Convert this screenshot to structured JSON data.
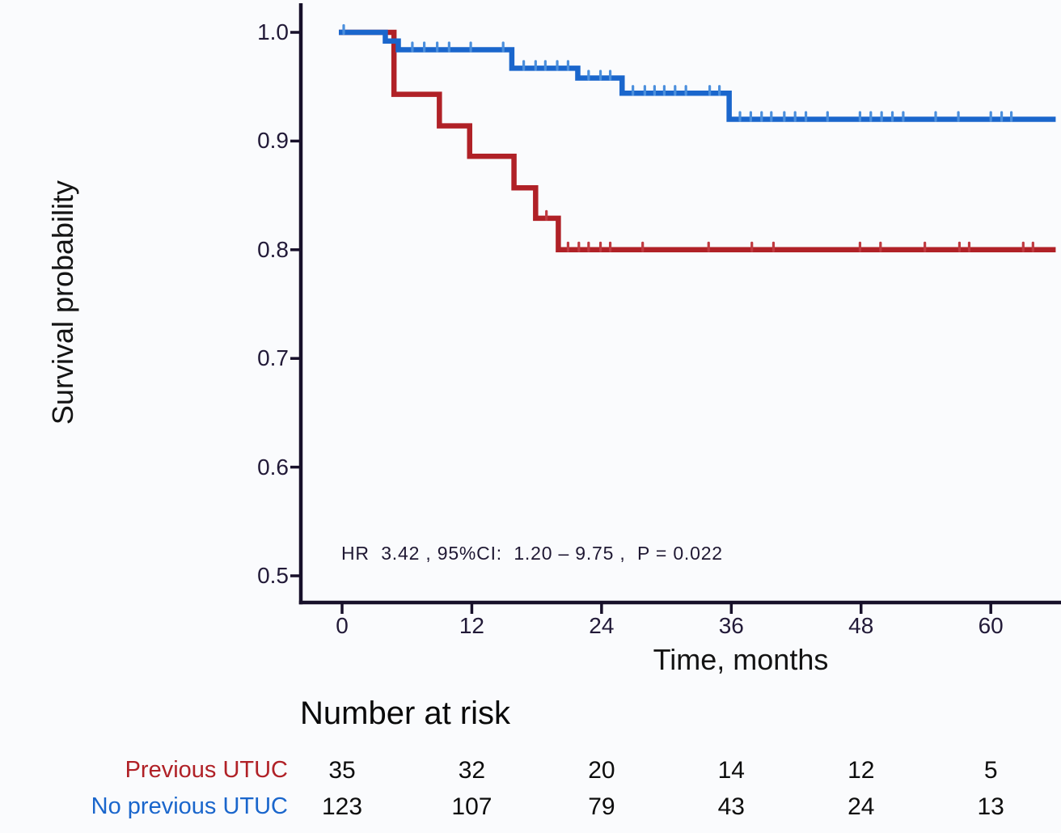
{
  "page_background": "#fafbfd",
  "colors": {
    "axis": "#17102a",
    "tick_label": "#221a38",
    "annotation_text": "#1f1833",
    "risk_numbers": "#0d0d0d",
    "previous_utuc_red": "#b02127",
    "no_previous_utuc_blue": "#1a66cc"
  },
  "chart_data": {
    "type": "line",
    "subtype": "kaplan-meier-step",
    "ylabel": "Survival probability",
    "xlabel": "Time, months",
    "annotation": "HR  3.42 , 95%CI:  1.20 – 9.75 ,  P = 0.022",
    "xlim": [
      0,
      66
    ],
    "ylim": [
      0.47,
      1.02
    ],
    "x_ticks": [
      0,
      12,
      24,
      36,
      48,
      60
    ],
    "y_ticks": [
      "1.0",
      "0.9",
      "0.8",
      "0.7",
      "0.6",
      "0.5"
    ],
    "y_tick_values": [
      1.0,
      0.9,
      0.8,
      0.7,
      0.6,
      0.5
    ],
    "grid": false,
    "legend_position": "none",
    "series": [
      {
        "name": "Previous UTUC",
        "color": "#b02127",
        "censor_color": "#c03a40",
        "end_time": 66,
        "steps": [
          [
            0,
            1.0
          ],
          [
            4.8,
            0.943
          ],
          [
            9.0,
            0.914
          ],
          [
            11.8,
            0.886
          ],
          [
            15.9,
            0.857
          ],
          [
            17.9,
            0.829
          ],
          [
            20.0,
            0.8
          ]
        ],
        "censor_times": [
          18.9,
          20.9,
          21.9,
          22.8,
          23.9,
          24.8,
          27.8,
          33.9,
          37.9,
          39.9,
          47.9,
          49.8,
          53.9,
          57.1,
          58.0,
          63.0,
          63.9
        ]
      },
      {
        "name": "No previous UTUC",
        "color": "#1a66cc",
        "censor_color": "#4b8fdd",
        "end_time": 66,
        "steps": [
          [
            0,
            1.0
          ],
          [
            4.0,
            0.992
          ],
          [
            5.2,
            0.984
          ],
          [
            15.7,
            0.967
          ],
          [
            21.8,
            0.958
          ],
          [
            25.9,
            0.944
          ],
          [
            35.8,
            0.92
          ]
        ],
        "censor_times": [
          0.15,
          6.5,
          7.6,
          8.8,
          9.9,
          11.9,
          14.9,
          16.8,
          17.9,
          18.8,
          19.9,
          20.9,
          22.8,
          23.9,
          24.8,
          26.9,
          28.0,
          28.9,
          29.8,
          30.8,
          31.8,
          34.0,
          34.9,
          36.8,
          37.8,
          38.8,
          39.7,
          40.9,
          41.9,
          42.9,
          44.9,
          47.9,
          48.9,
          49.9,
          50.9,
          51.9,
          54.9,
          57.0,
          60.0,
          61.0,
          61.9
        ]
      }
    ],
    "number_at_risk": {
      "title": "Number at risk",
      "times": [
        0,
        12,
        24,
        36,
        48,
        60
      ],
      "rows": [
        {
          "name": "Previous UTUC",
          "color": "#b02127",
          "counts": [
            "35",
            "32",
            "20",
            "14",
            "12",
            "5"
          ]
        },
        {
          "name": "No previous UTUC",
          "color": "#1a66cc",
          "counts": [
            "123",
            "107",
            "79",
            "43",
            "24",
            "13"
          ]
        }
      ]
    }
  }
}
